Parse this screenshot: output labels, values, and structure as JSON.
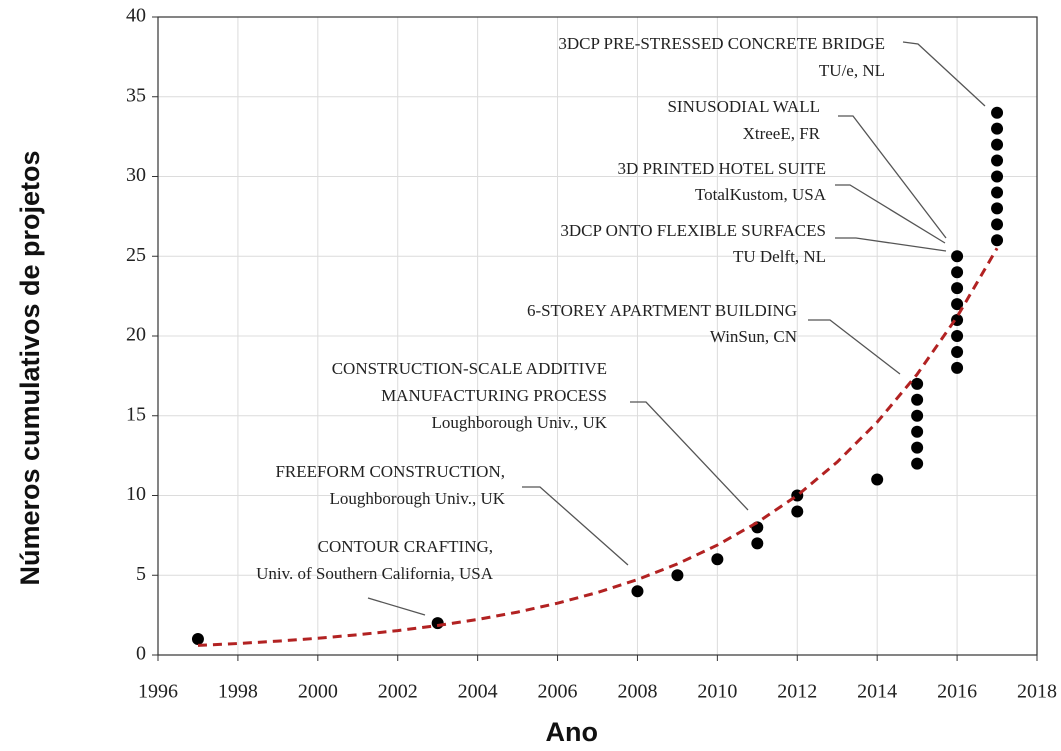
{
  "chart_data": {
    "type": "scatter",
    "x_label": "Ano",
    "y_label": "Números cumulativos de projetos",
    "xlim": [
      1996,
      2018
    ],
    "xticks": [
      1996,
      1998,
      2000,
      2002,
      2004,
      2006,
      2008,
      2010,
      2012,
      2014,
      2016,
      2018
    ],
    "ylim": [
      0,
      40
    ],
    "yticks": [
      0,
      5,
      10,
      15,
      20,
      25,
      30,
      35,
      40
    ],
    "grid": true,
    "series": [
      {
        "color": "#000000",
        "x": [
          1997,
          2003,
          2008,
          2009,
          2010,
          2011,
          2011,
          2012,
          2012,
          2014,
          2015,
          2015,
          2015,
          2015,
          2015,
          2015,
          2016,
          2016,
          2016,
          2016,
          2016,
          2016,
          2016,
          2016,
          2017,
          2017,
          2017,
          2017,
          2017,
          2017,
          2017,
          2017,
          2017
        ],
        "values": [
          1,
          2,
          4,
          5,
          6,
          7,
          8,
          9,
          10,
          11,
          12,
          13,
          14,
          15,
          16,
          17,
          18,
          19,
          20,
          21,
          22,
          23,
          24,
          25,
          26,
          27,
          28,
          29,
          30,
          31,
          32,
          33,
          34
        ]
      },
      {
        "type": "line",
        "color": "#b22222",
        "x": [
          1997,
          1998,
          1999,
          2000,
          2001,
          2002,
          2003,
          2004,
          2005,
          2006,
          2007,
          2008,
          2009,
          2010,
          2011,
          2012,
          2013,
          2014,
          2015,
          2016,
          2017
        ],
        "values": [
          0.6,
          0.72,
          0.87,
          1.05,
          1.27,
          1.53,
          1.85,
          2.23,
          2.69,
          3.25,
          3.92,
          4.73,
          5.71,
          6.89,
          8.31,
          10.0,
          12.1,
          14.6,
          17.6,
          21.2,
          25.5
        ]
      }
    ],
    "annotations": [
      {
        "lines": [
          "3DCP PRE-STRESSED CONCRETE BRIDGE",
          "TU/e, NL"
        ]
      },
      {
        "lines": [
          "SINUSODIAL WALL",
          "XtreeE, FR"
        ]
      },
      {
        "lines": [
          "3D PRINTED HOTEL SUITE",
          "TotalKustom, USA"
        ]
      },
      {
        "lines": [
          "3DCP ONTO FLEXIBLE SURFACES",
          "TU Delft, NL"
        ]
      },
      {
        "lines": [
          "6-STOREY APARTMENT BUILDING",
          "WinSun, CN"
        ]
      },
      {
        "lines": [
          "CONSTRUCTION-SCALE ADDITIVE",
          "MANUFACTURING PROCESS",
          "Loughborough Univ., UK"
        ]
      },
      {
        "lines": [
          "FREEFORM CONSTRUCTION,",
          "Loughborough Univ., UK"
        ]
      },
      {
        "lines": [
          "CONTOUR CRAFTING,",
          "Univ. of Southern California,  USA"
        ]
      }
    ]
  }
}
